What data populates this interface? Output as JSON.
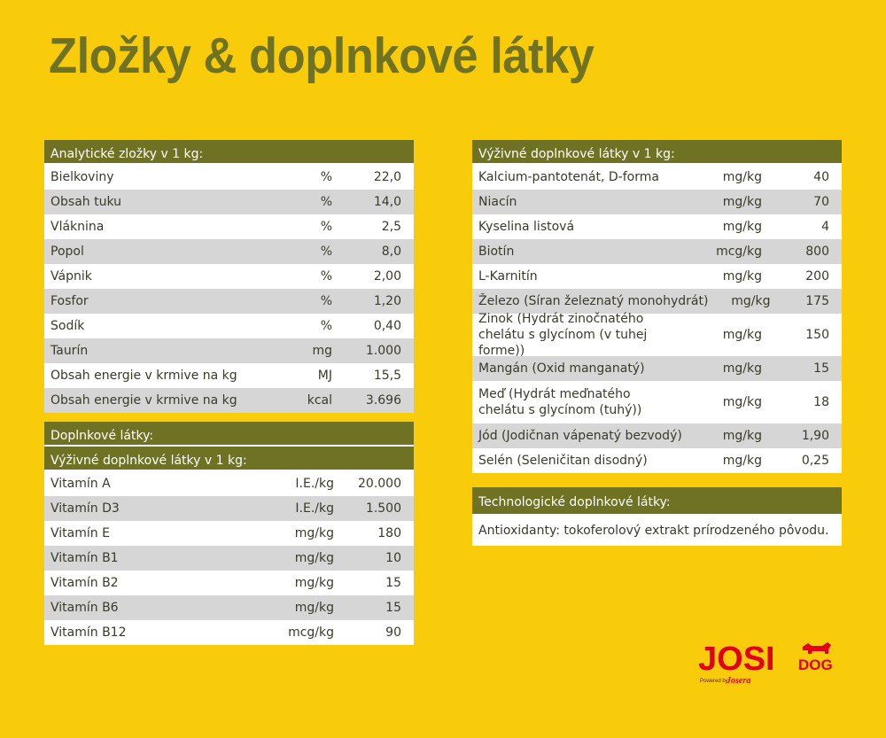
{
  "title": "Zložky & doplnkové látky",
  "analytic": {
    "header": "Analytické zložky v 1 kg:",
    "rows": [
      {
        "name": "Bielkoviny",
        "unit": "%",
        "value": "22,0"
      },
      {
        "name": "Obsah tuku",
        "unit": "%",
        "value": "14,0"
      },
      {
        "name": "Vláknina",
        "unit": "%",
        "value": "2,5"
      },
      {
        "name": "Popol",
        "unit": "%",
        "value": "8,0"
      },
      {
        "name": "Vápnik",
        "unit": "%",
        "value": "2,00"
      },
      {
        "name": "Fosfor",
        "unit": "%",
        "value": "1,20"
      },
      {
        "name": "Sodík",
        "unit": "%",
        "value": "0,40"
      },
      {
        "name": "Taurín",
        "unit": "mg",
        "value": "1.000"
      },
      {
        "name": "Obsah energie v krmive na kg",
        "unit": "MJ",
        "value": "15,5"
      },
      {
        "name": "Obsah energie v krmive na kg",
        "unit": "kcal",
        "value": "3.696"
      }
    ]
  },
  "additives": {
    "header": "Doplnkové látky:",
    "subheader": "Výživné doplnkové látky v 1 kg:",
    "rows": [
      {
        "name": "Vitamín A",
        "unit": "I.E./kg",
        "value": "20.000"
      },
      {
        "name": "Vitamín D3",
        "unit": "I.E./kg",
        "value": "1.500"
      },
      {
        "name": "Vitamín E",
        "unit": "mg/kg",
        "value": "180"
      },
      {
        "name": "Vitamín B1",
        "unit": "mg/kg",
        "value": "10"
      },
      {
        "name": "Vitamín B2",
        "unit": "mg/kg",
        "value": "15"
      },
      {
        "name": "Vitamín B6",
        "unit": "mg/kg",
        "value": "15"
      },
      {
        "name": "Vitamín B12",
        "unit": "mcg/kg",
        "value": "90"
      }
    ]
  },
  "nutritional": {
    "header": "Výživné doplnkové látky v 1 kg:",
    "rows": [
      {
        "name": "Kalcium-pantotenát, D-forma",
        "unit": "mg/kg",
        "value": "40"
      },
      {
        "name": "Niacín",
        "unit": "mg/kg",
        "value": "70"
      },
      {
        "name": "Kyselina listová",
        "unit": "mg/kg",
        "value": "4"
      },
      {
        "name": "Biotín",
        "unit": "mcg/kg",
        "value": "800"
      },
      {
        "name": "L-Karnitín",
        "unit": "mg/kg",
        "value": "200"
      },
      {
        "name": "Železo (Síran železnatý monohydrát)",
        "unit": "mg/kg",
        "value": "175"
      },
      {
        "name": "Zinok (Hydrát zinočnatého chelátu s glycínom (v tuhej forme))",
        "unit": "mg/kg",
        "value": "150",
        "tall": true
      },
      {
        "name": "Mangán (Oxid manganatý)",
        "unit": "mg/kg",
        "value": "15"
      },
      {
        "name": "Meď (Hydrát meďnatého chelátu s glycínom (tuhý))",
        "unit": "mg/kg",
        "value": "18",
        "tall": true
      },
      {
        "name": "Jód (Jodičnan vápenatý bezvodý)",
        "unit": "mg/kg",
        "value": "1,90"
      },
      {
        "name": "Selén (Seleničitan disodný)",
        "unit": "mg/kg",
        "value": "0,25"
      }
    ]
  },
  "technological": {
    "header": "Technologické doplnkové látky:",
    "text": "Antioxidanty: tokoferolový extrakt prírodzeného pôvodu."
  },
  "logo": {
    "main": "JOSI",
    "dog": "DOG",
    "powered": "Powered by",
    "brand": "Josera",
    "color": "#e2001a"
  }
}
